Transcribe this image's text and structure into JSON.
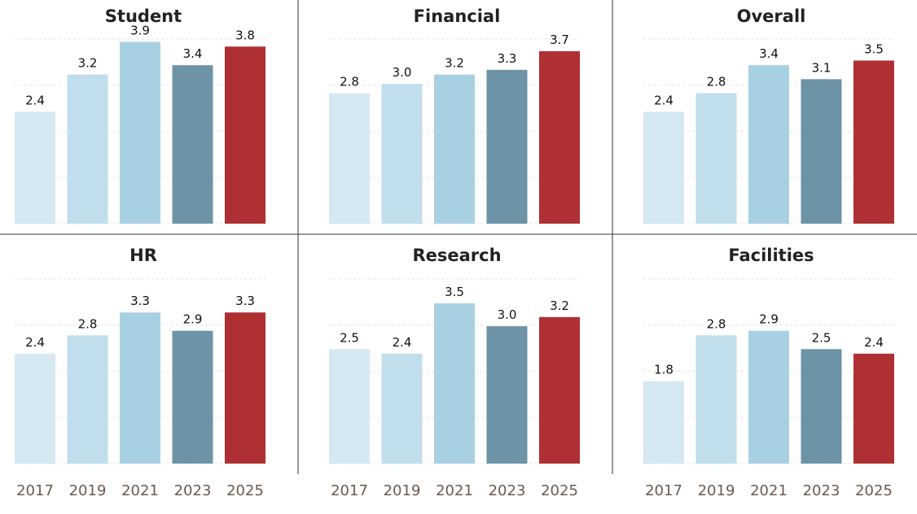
{
  "colors": {
    "categories": [
      "#d6e8f2",
      "#c0deec",
      "#a8d0e3",
      "#6d93a6",
      "#ae3033"
    ],
    "grid": "#e4e4e4",
    "divider": "#333333",
    "tick_text": "#6b5a50"
  },
  "chart_data": [
    {
      "type": "bar",
      "title": "Student",
      "categories": [
        "2017",
        "2019",
        "2021",
        "2023",
        "2025"
      ],
      "values": [
        2.4,
        3.2,
        3.9,
        3.4,
        3.8
      ],
      "ylim": [
        0,
        4.0
      ],
      "grid": true
    },
    {
      "type": "bar",
      "title": "Financial",
      "categories": [
        "2017",
        "2019",
        "2021",
        "2023",
        "2025"
      ],
      "values": [
        2.8,
        3.0,
        3.2,
        3.3,
        3.7
      ],
      "ylim": [
        0,
        4.0
      ],
      "grid": true
    },
    {
      "type": "bar",
      "title": "Overall",
      "categories": [
        "2017",
        "2019",
        "2021",
        "2023",
        "2025"
      ],
      "values": [
        2.4,
        2.8,
        3.4,
        3.1,
        3.5
      ],
      "ylim": [
        0,
        4.0
      ],
      "grid": true
    },
    {
      "type": "bar",
      "title": "HR",
      "categories": [
        "2017",
        "2019",
        "2021",
        "2023",
        "2025"
      ],
      "values": [
        2.4,
        2.8,
        3.3,
        2.9,
        3.3
      ],
      "ylim": [
        0,
        4.0
      ],
      "grid": true
    },
    {
      "type": "bar",
      "title": "Research",
      "categories": [
        "2017",
        "2019",
        "2021",
        "2023",
        "2025"
      ],
      "values": [
        2.5,
        2.4,
        3.5,
        3.0,
        3.2
      ],
      "ylim": [
        0,
        4.0
      ],
      "grid": true
    },
    {
      "type": "bar",
      "title": "Facilities",
      "categories": [
        "2017",
        "2019",
        "2021",
        "2023",
        "2025"
      ],
      "values": [
        1.8,
        2.8,
        2.9,
        2.5,
        2.4
      ],
      "ylim": [
        0,
        4.0
      ],
      "grid": true
    }
  ]
}
